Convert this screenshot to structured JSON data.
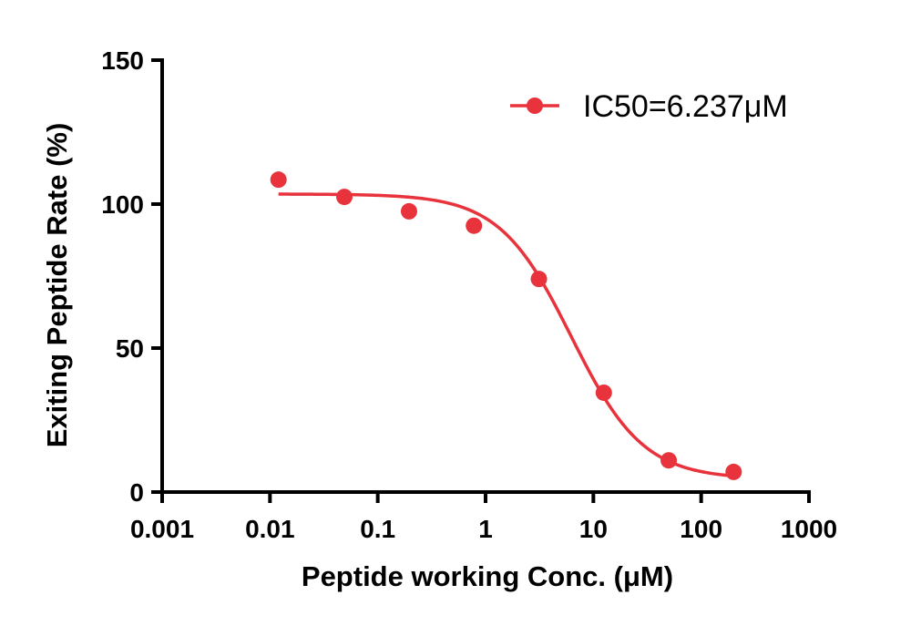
{
  "chart_data": {
    "type": "scatter",
    "title": "",
    "xlabel": "Peptide working Conc. (μM)",
    "ylabel": "Exiting Peptide Rate (%)",
    "xscale": "log",
    "xlim": [
      0.001,
      1000
    ],
    "ylim": [
      0,
      150
    ],
    "xticks": [
      0.001,
      0.01,
      0.1,
      1,
      10,
      100,
      1000
    ],
    "xtick_labels": [
      "0.001",
      "0.01",
      "0.1",
      "1",
      "10",
      "100",
      "1000"
    ],
    "yticks": [
      0,
      50,
      100,
      150
    ],
    "ytick_labels": [
      "0",
      "50",
      "100",
      "150"
    ],
    "grid": false,
    "legend_position": "top-right",
    "series": [
      {
        "name": "IC50=6.237μM",
        "color": "#e8333c",
        "marker": "circle",
        "x": [
          0.012,
          0.049,
          0.195,
          0.78,
          3.125,
          12.5,
          50,
          200
        ],
        "y": [
          108.5,
          102.5,
          97.5,
          92.5,
          74,
          34.5,
          11,
          7
        ]
      }
    ],
    "fit_curve": {
      "model": "four-parameter logistic",
      "top": 103.5,
      "bottom": 4.5,
      "ic50": 6.237,
      "hill_slope": 1.3,
      "x_range": [
        0.012,
        200
      ],
      "color": "#e8333c"
    }
  }
}
